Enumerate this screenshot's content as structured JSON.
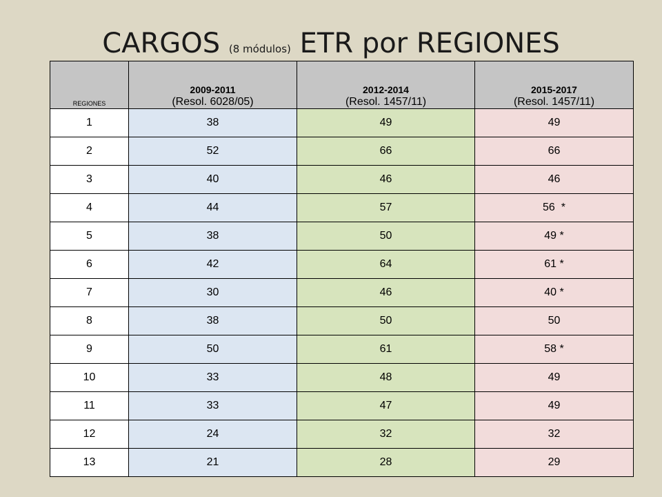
{
  "title": {
    "main_before": "CARGOS ",
    "small": "(8 módulos)",
    "main_after": " ETR por REGIONES"
  },
  "table": {
    "headers": [
      {
        "label": "REGIONES"
      },
      {
        "period": "2009-2011",
        "resol": "(Resol. 6028/05)"
      },
      {
        "period": "2012-2014",
        "resol": "(Resol. 1457/11)"
      },
      {
        "period": "2015-2017",
        "resol": "(Resol. 1457/11)"
      }
    ],
    "rows": [
      [
        "1",
        "38",
        "49",
        "49"
      ],
      [
        "2",
        "52",
        "66",
        "66"
      ],
      [
        "3",
        "40",
        "46",
        "46"
      ],
      [
        "4",
        "44",
        "57",
        "56  *"
      ],
      [
        "5",
        "38",
        "50",
        "49 *"
      ],
      [
        "6",
        "42",
        "64",
        "61 *"
      ],
      [
        "7",
        "30",
        "46",
        "40 *"
      ],
      [
        "8",
        "38",
        "50",
        "50"
      ],
      [
        "9",
        "50",
        "61",
        "58 *"
      ],
      [
        "10",
        "33",
        "48",
        "49"
      ],
      [
        "11",
        "33",
        "47",
        "49"
      ],
      [
        "12",
        "24",
        "32",
        "32"
      ],
      [
        "13",
        "21",
        "28",
        "29"
      ]
    ]
  },
  "colors": {
    "background": "#ddd8c5",
    "header": "#c5c5c5",
    "col_2009_2011": "#dce6f2",
    "col_2012_2014": "#d7e4bd",
    "col_2015_2017": "#f2dcdb"
  }
}
